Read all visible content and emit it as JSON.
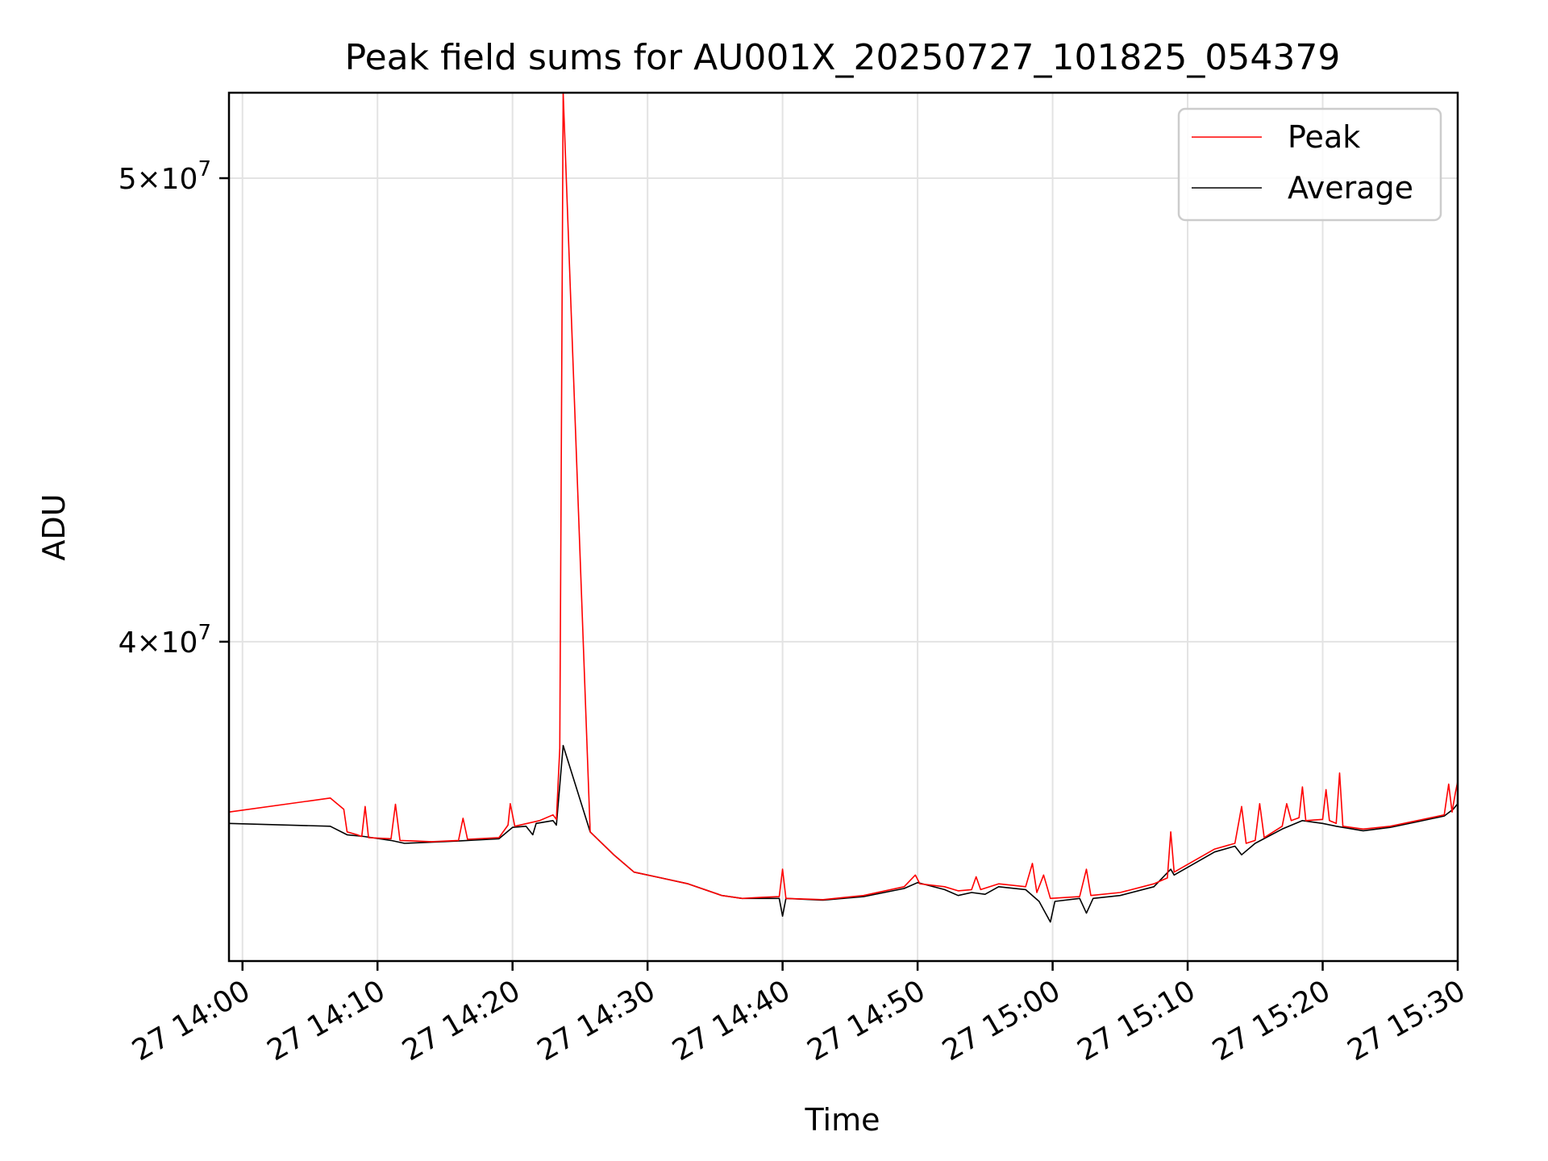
{
  "chart_data": {
    "type": "line",
    "title": "Peak field sums for AU001X_20250727_101825_054379",
    "xlabel": "Time",
    "ylabel": "ADU",
    "y_scale": "log",
    "ylim": [
      34300000,
      52100000
    ],
    "xlim": [
      "2025-07-27 13:59:00",
      "2025-07-27 15:30:00"
    ],
    "grid": true,
    "legend_position": "top-right",
    "x_ticks": [
      {
        "value": "2025-07-27 14:00",
        "label": "27 14:00"
      },
      {
        "value": "2025-07-27 14:10",
        "label": "27 14:10"
      },
      {
        "value": "2025-07-27 14:20",
        "label": "27 14:20"
      },
      {
        "value": "2025-07-27 14:30",
        "label": "27 14:30"
      },
      {
        "value": "2025-07-27 14:40",
        "label": "27 14:40"
      },
      {
        "value": "2025-07-27 14:50",
        "label": "27 14:50"
      },
      {
        "value": "2025-07-27 15:00",
        "label": "27 15:00"
      },
      {
        "value": "2025-07-27 15:10",
        "label": "27 15:10"
      },
      {
        "value": "2025-07-27 15:20",
        "label": "27 15:20"
      },
      {
        "value": "2025-07-27 15:30",
        "label": "27 15:30"
      }
    ],
    "y_ticks": [
      {
        "value": 40000000,
        "mantissa": "4",
        "exponent": "7"
      },
      {
        "value": 50000000,
        "mantissa": "5",
        "exponent": "7"
      }
    ],
    "series": [
      {
        "name": "Peak",
        "color": "#ff0000",
        "points": [
          [
            "2025-07-27 13:59:00",
            36850000
          ],
          [
            "2025-07-27 14:06:30",
            37100000
          ],
          [
            "2025-07-27 14:07:30",
            36900000
          ],
          [
            "2025-07-27 14:07:45",
            36500000
          ],
          [
            "2025-07-27 14:08:30",
            36450000
          ],
          [
            "2025-07-27 14:08:50",
            36420000
          ],
          [
            "2025-07-27 14:09:05",
            36950000
          ],
          [
            "2025-07-27 14:09:20",
            36400000
          ],
          [
            "2025-07-27 14:11:00",
            36380000
          ],
          [
            "2025-07-27 14:11:20",
            36990000
          ],
          [
            "2025-07-27 14:11:40",
            36350000
          ],
          [
            "2025-07-27 14:14:00",
            36330000
          ],
          [
            "2025-07-27 14:16:00",
            36350000
          ],
          [
            "2025-07-27 14:16:20",
            36740000
          ],
          [
            "2025-07-27 14:16:40",
            36370000
          ],
          [
            "2025-07-27 14:19:00",
            36400000
          ],
          [
            "2025-07-27 14:19:40",
            36620000
          ],
          [
            "2025-07-27 14:19:50",
            37000000
          ],
          [
            "2025-07-27 14:20:10",
            36600000
          ],
          [
            "2025-07-27 14:22:00",
            36700000
          ],
          [
            "2025-07-27 14:23:00",
            36800000
          ],
          [
            "2025-07-27 14:23:15",
            36720000
          ],
          [
            "2025-07-27 14:23:30",
            38000000
          ],
          [
            "2025-07-27 14:23:45",
            52100000
          ],
          [
            "2025-07-27 14:25:45",
            36500000
          ],
          [
            "2025-07-27 14:27:30",
            36100000
          ],
          [
            "2025-07-27 14:29:00",
            35800000
          ],
          [
            "2025-07-27 14:31:00",
            35700000
          ],
          [
            "2025-07-27 14:33:00",
            35600000
          ],
          [
            "2025-07-27 14:35:30",
            35400000
          ],
          [
            "2025-07-27 14:37:00",
            35350000
          ],
          [
            "2025-07-27 14:38:30",
            35370000
          ],
          [
            "2025-07-27 14:39:45",
            35380000
          ],
          [
            "2025-07-27 14:40:00",
            35850000
          ],
          [
            "2025-07-27 14:40:15",
            35350000
          ],
          [
            "2025-07-27 14:43:00",
            35330000
          ],
          [
            "2025-07-27 14:46:00",
            35400000
          ],
          [
            "2025-07-27 14:49:00",
            35550000
          ],
          [
            "2025-07-27 14:49:50",
            35750000
          ],
          [
            "2025-07-27 14:50:10",
            35600000
          ],
          [
            "2025-07-27 14:52:00",
            35550000
          ],
          [
            "2025-07-27 14:53:00",
            35480000
          ],
          [
            "2025-07-27 14:54:00",
            35500000
          ],
          [
            "2025-07-27 14:54:20",
            35720000
          ],
          [
            "2025-07-27 14:54:40",
            35500000
          ],
          [
            "2025-07-27 14:56:00",
            35600000
          ],
          [
            "2025-07-27 14:58:00",
            35550000
          ],
          [
            "2025-07-27 14:58:30",
            35950000
          ],
          [
            "2025-07-27 14:58:50",
            35450000
          ],
          [
            "2025-07-27 14:59:20",
            35750000
          ],
          [
            "2025-07-27 14:59:50",
            35350000
          ],
          [
            "2025-07-27 15:02:00",
            35380000
          ],
          [
            "2025-07-27 15:02:30",
            35850000
          ],
          [
            "2025-07-27 15:02:50",
            35400000
          ],
          [
            "2025-07-27 15:05:00",
            35450000
          ],
          [
            "2025-07-27 15:07:30",
            35600000
          ],
          [
            "2025-07-27 15:08:30",
            35700000
          ],
          [
            "2025-07-27 15:08:45",
            36500000
          ],
          [
            "2025-07-27 15:09:00",
            35800000
          ],
          [
            "2025-07-27 15:12:00",
            36200000
          ],
          [
            "2025-07-27 15:13:30",
            36300000
          ],
          [
            "2025-07-27 15:14:00",
            36950000
          ],
          [
            "2025-07-27 15:14:20",
            36300000
          ],
          [
            "2025-07-27 15:15:00",
            36350000
          ],
          [
            "2025-07-27 15:15:20",
            37000000
          ],
          [
            "2025-07-27 15:15:40",
            36400000
          ],
          [
            "2025-07-27 15:17:00",
            36600000
          ],
          [
            "2025-07-27 15:17:20",
            37000000
          ],
          [
            "2025-07-27 15:17:40",
            36700000
          ],
          [
            "2025-07-27 15:18:15",
            36750000
          ],
          [
            "2025-07-27 15:18:30",
            37300000
          ],
          [
            "2025-07-27 15:18:45",
            36700000
          ],
          [
            "2025-07-27 15:20:00",
            36720000
          ],
          [
            "2025-07-27 15:20:15",
            37250000
          ],
          [
            "2025-07-27 15:20:30",
            36700000
          ],
          [
            "2025-07-27 15:21:00",
            36650000
          ],
          [
            "2025-07-27 15:21:15",
            37550000
          ],
          [
            "2025-07-27 15:21:30",
            36600000
          ],
          [
            "2025-07-27 15:23:00",
            36550000
          ],
          [
            "2025-07-27 15:25:00",
            36600000
          ],
          [
            "2025-07-27 15:27:00",
            36700000
          ],
          [
            "2025-07-27 15:29:00",
            36800000
          ],
          [
            "2025-07-27 15:29:20",
            37350000
          ],
          [
            "2025-07-27 15:29:35",
            36850000
          ],
          [
            "2025-07-27 15:29:50",
            37200000
          ],
          [
            "2025-07-27 15:30:00",
            37400000
          ]
        ]
      },
      {
        "name": "Average",
        "color": "#000000",
        "points": [
          [
            "2025-07-27 13:59:00",
            36650000
          ],
          [
            "2025-07-27 14:06:30",
            36600000
          ],
          [
            "2025-07-27 14:07:45",
            36450000
          ],
          [
            "2025-07-27 14:09:00",
            36420000
          ],
          [
            "2025-07-27 14:11:00",
            36350000
          ],
          [
            "2025-07-27 14:12:00",
            36300000
          ],
          [
            "2025-07-27 14:14:00",
            36320000
          ],
          [
            "2025-07-27 14:16:00",
            36340000
          ],
          [
            "2025-07-27 14:19:00",
            36380000
          ],
          [
            "2025-07-27 14:20:00",
            36580000
          ],
          [
            "2025-07-27 14:21:00",
            36600000
          ],
          [
            "2025-07-27 14:21:30",
            36450000
          ],
          [
            "2025-07-27 14:21:45",
            36650000
          ],
          [
            "2025-07-27 14:23:00",
            36700000
          ],
          [
            "2025-07-27 14:23:15",
            36620000
          ],
          [
            "2025-07-27 14:23:45",
            38050000
          ],
          [
            "2025-07-27 14:25:45",
            36500000
          ],
          [
            "2025-07-27 14:27:30",
            36100000
          ],
          [
            "2025-07-27 14:29:00",
            35800000
          ],
          [
            "2025-07-27 14:31:00",
            35700000
          ],
          [
            "2025-07-27 14:33:00",
            35600000
          ],
          [
            "2025-07-27 14:35:30",
            35400000
          ],
          [
            "2025-07-27 14:37:00",
            35350000
          ],
          [
            "2025-07-27 14:39:45",
            35350000
          ],
          [
            "2025-07-27 14:40:00",
            35050000
          ],
          [
            "2025-07-27 14:40:15",
            35350000
          ],
          [
            "2025-07-27 14:43:00",
            35320000
          ],
          [
            "2025-07-27 14:46:00",
            35380000
          ],
          [
            "2025-07-27 14:49:00",
            35520000
          ],
          [
            "2025-07-27 14:50:00",
            35620000
          ],
          [
            "2025-07-27 14:52:00",
            35500000
          ],
          [
            "2025-07-27 14:53:00",
            35400000
          ],
          [
            "2025-07-27 14:54:00",
            35450000
          ],
          [
            "2025-07-27 14:55:00",
            35420000
          ],
          [
            "2025-07-27 14:56:00",
            35550000
          ],
          [
            "2025-07-27 14:58:00",
            35500000
          ],
          [
            "2025-07-27 14:59:00",
            35300000
          ],
          [
            "2025-07-27 14:59:50",
            34950000
          ],
          [
            "2025-07-27 15:00:10",
            35300000
          ],
          [
            "2025-07-27 15:02:00",
            35350000
          ],
          [
            "2025-07-27 15:02:30",
            35100000
          ],
          [
            "2025-07-27 15:03:00",
            35350000
          ],
          [
            "2025-07-27 15:05:00",
            35400000
          ],
          [
            "2025-07-27 15:07:30",
            35550000
          ],
          [
            "2025-07-27 15:08:45",
            35850000
          ],
          [
            "2025-07-27 15:09:00",
            35750000
          ],
          [
            "2025-07-27 15:12:00",
            36150000
          ],
          [
            "2025-07-27 15:13:30",
            36250000
          ],
          [
            "2025-07-27 15:14:00",
            36100000
          ],
          [
            "2025-07-27 15:15:00",
            36300000
          ],
          [
            "2025-07-27 15:17:00",
            36550000
          ],
          [
            "2025-07-27 15:18:30",
            36700000
          ],
          [
            "2025-07-27 15:20:00",
            36650000
          ],
          [
            "2025-07-27 15:21:00",
            36600000
          ],
          [
            "2025-07-27 15:23:00",
            36520000
          ],
          [
            "2025-07-27 15:25:00",
            36580000
          ],
          [
            "2025-07-27 15:27:00",
            36680000
          ],
          [
            "2025-07-27 15:29:00",
            36780000
          ],
          [
            "2025-07-27 15:29:40",
            36900000
          ],
          [
            "2025-07-27 15:30:00",
            37000000
          ]
        ]
      }
    ]
  }
}
